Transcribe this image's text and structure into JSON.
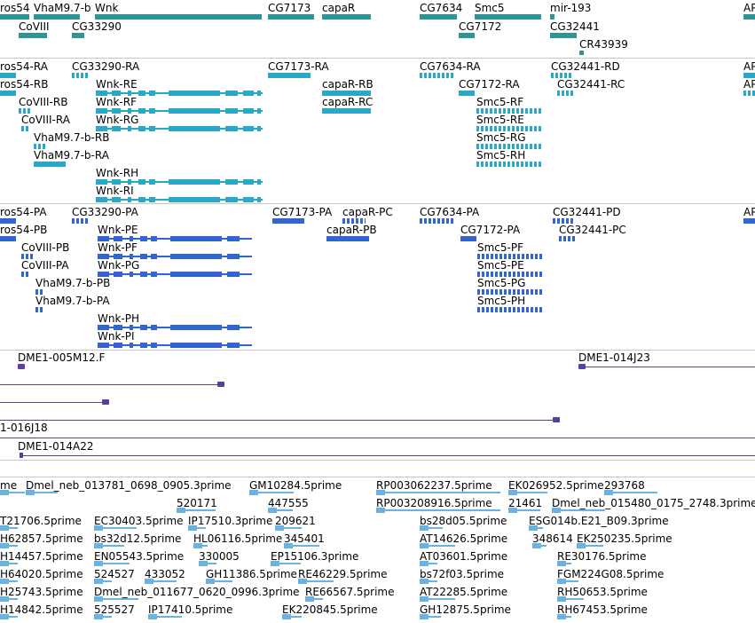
{
  "colors": {
    "gene": "#2e9494",
    "rna": "#2ba7c7",
    "cds": "#3366cc",
    "clone": "#5b3f9e",
    "est": "#6bb2e0",
    "separator": "#c8c8c8"
  },
  "genes": [
    "ros54",
    "VhaM9.7-b",
    "Wnk",
    "CG7173",
    "capaR",
    "CG7634",
    "Smc5",
    "mir-193",
    "AP",
    "CoVIII",
    "CG33290",
    "CG7172",
    "CG32441",
    "CR43939"
  ],
  "transcripts": [
    "ros54-RA",
    "CG33290-RA",
    "CG7173-RA",
    "CG7634-RA",
    "CG32441-RD",
    "AP",
    "ros54-RB",
    "Wnk-RE",
    "capaR-RB",
    "CG7172-RA",
    "CG32441-RC",
    "AP",
    "CoVIII-RB",
    "Wnk-RF",
    "capaR-RC",
    "Smc5-RF",
    "CoVIII-RA",
    "Wnk-RG",
    "Smc5-RE",
    "VhaM9.7-b-RB",
    "Smc5-RG",
    "VhaM9.7-b-RA",
    "Smc5-RH",
    "Wnk-RH",
    "Wnk-RI"
  ],
  "proteins": [
    "ros54-PA",
    "CG33290-PA",
    "CG7173-PA",
    "capaR-PC",
    "CG7634-PA",
    "CG32441-PD",
    "AP",
    "ros54-PB",
    "Wnk-PE",
    "capaR-PB",
    "CG7172-PA",
    "CG32441-PC",
    "CoVIII-PB",
    "Wnk-PF",
    "Smc5-PF",
    "CoVIII-PA",
    "Wnk-PG",
    "Smc5-PE",
    "VhaM9.7-b-PB",
    "Smc5-PG",
    "VhaM9.7-b-PA",
    "Smc5-PH",
    "Wnk-PH",
    "Wnk-PI"
  ],
  "clones": [
    "DME1-005M12.F",
    "DME1-014J23",
    "1-016J18",
    "DME1-014A22"
  ],
  "ests": [
    "me",
    "Dmel_neb_013781_0698_0905.3prime",
    "GM10284.5prime",
    "RP003062237.5prime",
    "EK026952.5prime",
    "293768",
    "520171",
    "447555",
    "RP003208916.5prime",
    "21461",
    "Dmel_neb_015480_0175_2748.3prime",
    "T21706.5prime",
    "EC30403.5prime",
    "IP17510.3prime",
    "209621",
    "bs28d05.5prime",
    "ESG014b.E21_B09.3prime",
    "H62857.5prime",
    "bs32d12.5prime",
    "HL06116.5prime",
    "345401",
    "AT14626.5prime",
    "348614",
    "EK250235.5prime",
    "H14457.5prime",
    "EN05543.5prime",
    "330005",
    "EP15106.3prime",
    "AT03601.5prime",
    "RE30176.5prime",
    "H64020.5prime",
    "524527",
    "433052",
    "GH11386.5prime",
    "RE46229.5prime",
    "bs72f03.5prime",
    "FGM224G08.5prime",
    "H25743.5prime",
    "Dmel_neb_011677_0620_0996.3prime",
    "RE66567.5prime",
    "AT22285.5prime",
    "RH50653.5prime",
    "H14842.5prime",
    "525527",
    "IP17410.5prime",
    "EK220845.5prime",
    "GH12875.5prime",
    "RH67453.5prime"
  ]
}
